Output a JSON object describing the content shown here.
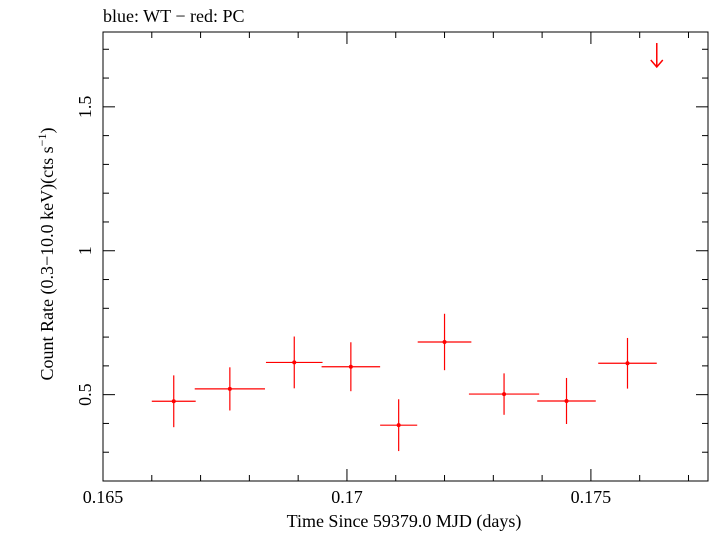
{
  "chart_data": {
    "type": "scatter",
    "title": "blue: WT − red: PC",
    "xlabel": "Time Since 59379.0 MJD (days)",
    "ylabel_main": "Count Rate (0.3−10.0 keV)(cts s",
    "ylabel_sup": "−1",
    "ylabel_close": ")",
    "xlim": [
      0.165,
      0.1774
    ],
    "ylim": [
      0.2,
      1.76
    ],
    "xticks": [
      {
        "value": 0.165,
        "label": "0.165"
      },
      {
        "value": 0.17,
        "label": "0.17"
      },
      {
        "value": 0.175,
        "label": "0.175"
      }
    ],
    "yticks": [
      {
        "value": 0.5,
        "label": "0.5"
      },
      {
        "value": 1.0,
        "label": "1"
      },
      {
        "value": 1.5,
        "label": "1.5"
      }
    ],
    "x_minor_step": 0.001,
    "y_minor_step": 0.1,
    "grid": false,
    "series": [
      {
        "color": "#ff0000",
        "points": [
          {
            "x": 0.16645,
            "y": 0.477,
            "xerr": 0.00045,
            "yerr": 0.09
          },
          {
            "x": 0.1676,
            "y": 0.52,
            "xerr": 0.00072,
            "yerr": 0.075
          },
          {
            "x": 0.16892,
            "y": 0.612,
            "xerr": 0.00058,
            "yerr": 0.09
          },
          {
            "x": 0.17008,
            "y": 0.597,
            "xerr": 0.0006,
            "yerr": 0.085
          },
          {
            "x": 0.17106,
            "y": 0.394,
            "xerr": 0.00038,
            "yerr": 0.09
          },
          {
            "x": 0.172,
            "y": 0.683,
            "xerr": 0.00055,
            "yerr": 0.098
          },
          {
            "x": 0.17322,
            "y": 0.502,
            "xerr": 0.00072,
            "yerr": 0.072
          },
          {
            "x": 0.1745,
            "y": 0.478,
            "xerr": 0.0006,
            "yerr": 0.08
          },
          {
            "x": 0.17575,
            "y": 0.609,
            "xerr": 0.0006,
            "yerr": 0.088
          }
        ],
        "upper_limits": [
          {
            "x": 0.17635,
            "y": 1.68
          }
        ]
      }
    ]
  }
}
